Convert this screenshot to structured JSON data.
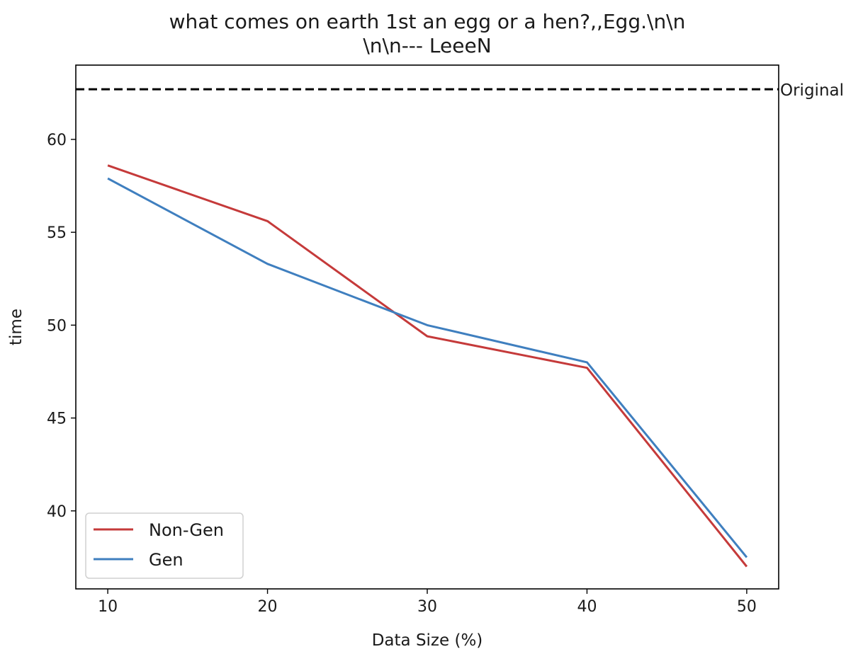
{
  "chart_data": {
    "type": "line",
    "title_lines": [
      "what comes on earth 1st an egg or a hen?,,Egg.\\n\\n",
      "\\n\\n--- LeeeN"
    ],
    "xlabel": "Data Size (%)",
    "ylabel": "time",
    "x": [
      10,
      20,
      30,
      40,
      50
    ],
    "xticks": [
      "10",
      "20",
      "30",
      "40",
      "50"
    ],
    "yticks": [
      "40",
      "45",
      "50",
      "55",
      "60"
    ],
    "xlim": [
      8,
      52
    ],
    "ylim": [
      35.8,
      64
    ],
    "grid": false,
    "legend_position": "lower-left",
    "series": [
      {
        "name": "Non-Gen",
        "color": "#c53a3a",
        "values": [
          58.6,
          55.6,
          49.4,
          47.7,
          37.0
        ]
      },
      {
        "name": "Gen",
        "color": "#3f7fbf",
        "values": [
          57.9,
          53.3,
          50.0,
          48.0,
          37.5
        ]
      }
    ],
    "reference_line": {
      "label": "Original",
      "value": 62.7,
      "color": "#000000",
      "style": "dashed"
    }
  }
}
